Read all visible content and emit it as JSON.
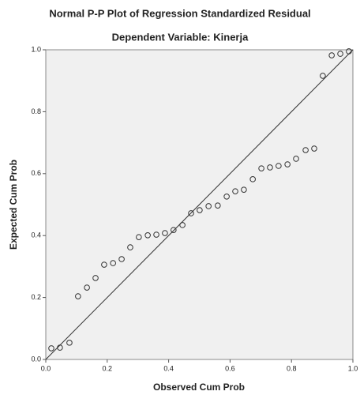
{
  "chart_data": {
    "type": "scatter",
    "title": "Normal P-P Plot of Regression Standardized Residual",
    "subtitle": "Dependent Variable: Kinerja",
    "x_label": "Observed Cum Prob",
    "y_label": "Expected Cum Prob",
    "x": [
      0.018,
      0.046,
      0.077,
      0.105,
      0.134,
      0.162,
      0.19,
      0.219,
      0.247,
      0.275,
      0.303,
      0.332,
      0.36,
      0.388,
      0.416,
      0.445,
      0.473,
      0.501,
      0.53,
      0.56,
      0.589,
      0.617,
      0.645,
      0.674,
      0.702,
      0.73,
      0.758,
      0.787,
      0.815,
      0.846,
      0.874,
      0.902,
      0.931,
      0.959,
      0.987
    ],
    "values": [
      0.036,
      0.038,
      0.054,
      0.204,
      0.232,
      0.263,
      0.306,
      0.311,
      0.324,
      0.362,
      0.395,
      0.401,
      0.403,
      0.408,
      0.418,
      0.434,
      0.472,
      0.482,
      0.495,
      0.497,
      0.526,
      0.543,
      0.548,
      0.582,
      0.617,
      0.62,
      0.625,
      0.63,
      0.648,
      0.676,
      0.681,
      0.916,
      0.982,
      0.987,
      0.995
    ],
    "color": "#333333",
    "reference_line": "diagonal",
    "xlim": [
      0,
      1
    ],
    "ylim": [
      0,
      1
    ],
    "xticks": [
      {
        "value": 0,
        "label": "0.0"
      },
      {
        "value": 0.2,
        "label": "0.2"
      },
      {
        "value": 0.4,
        "label": "0.4"
      },
      {
        "value": 0.6,
        "label": "0.6"
      },
      {
        "value": 0.8,
        "label": "0.8"
      },
      {
        "value": 1,
        "label": "1.0"
      }
    ],
    "yticks": [
      {
        "value": 0,
        "label": "0.0"
      },
      {
        "value": 0.2,
        "label": "0.2"
      },
      {
        "value": 0.4,
        "label": "0.4"
      },
      {
        "value": 0.6,
        "label": "0.6"
      },
      {
        "value": 0.8,
        "label": "0.8"
      },
      {
        "value": 1,
        "label": "1.0"
      }
    ]
  }
}
